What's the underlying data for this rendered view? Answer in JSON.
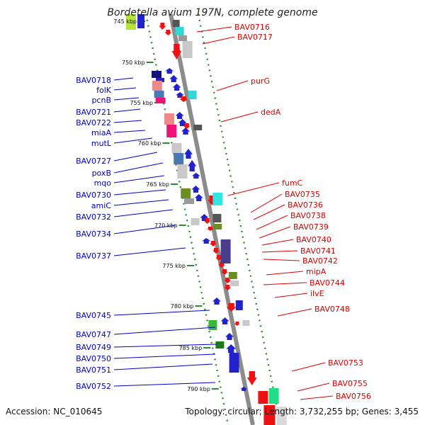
{
  "title": "Bordetella avium 197N, complete genome",
  "footer": {
    "accession": "Accession: NC_010645",
    "summary": "Topology: circular; Length: 3,732,255 bp; Genes: 3,455"
  },
  "colors": {
    "left_label": "#0000cc",
    "right_label": "#dd0000",
    "backbone": "#8c8c8c",
    "ticks": "#2e8b2e"
  },
  "kbp_ticks": [
    {
      "label": "745 kbp"
    },
    {
      "label": "750 kbp"
    },
    {
      "label": "755 kbp"
    },
    {
      "label": "760 kbp"
    },
    {
      "label": "765 kbp"
    },
    {
      "label": "770 kbp"
    },
    {
      "label": "775 kbp"
    },
    {
      "label": "780 kbp"
    },
    {
      "label": "785 kbp"
    },
    {
      "label": "790 kbp"
    }
  ],
  "left_genes": [
    {
      "label": "BAV0718"
    },
    {
      "label": "folK"
    },
    {
      "label": "pcnB"
    },
    {
      "label": "BAV0721"
    },
    {
      "label": "BAV0722"
    },
    {
      "label": "miaA"
    },
    {
      "label": "mutL"
    },
    {
      "label": "BAV0727"
    },
    {
      "label": "poxB"
    },
    {
      "label": "mqo"
    },
    {
      "label": "BAV0730"
    },
    {
      "label": "amiC"
    },
    {
      "label": "BAV0732"
    },
    {
      "label": "BAV0734"
    },
    {
      "label": "BAV0737"
    },
    {
      "label": "BAV0745"
    },
    {
      "label": "BAV0747"
    },
    {
      "label": "BAV0749"
    },
    {
      "label": "BAV0750"
    },
    {
      "label": "BAV0751"
    },
    {
      "label": "BAV0752"
    }
  ],
  "right_genes": [
    {
      "label": "BAV0716"
    },
    {
      "label": "BAV0717"
    },
    {
      "label": "purG"
    },
    {
      "label": "dedA"
    },
    {
      "label": "fumC"
    },
    {
      "label": "BAV0735"
    },
    {
      "label": "BAV0736"
    },
    {
      "label": "BAV0738"
    },
    {
      "label": "BAV0739"
    },
    {
      "label": "BAV0740"
    },
    {
      "label": "BAV0741"
    },
    {
      "label": "BAV0742"
    },
    {
      "label": "mipA"
    },
    {
      "label": "BAV0744"
    },
    {
      "label": "ilvE"
    },
    {
      "label": "BAV0748"
    },
    {
      "label": "BAV0753"
    },
    {
      "label": "BAV0755"
    },
    {
      "label": "BAV0756"
    }
  ]
}
